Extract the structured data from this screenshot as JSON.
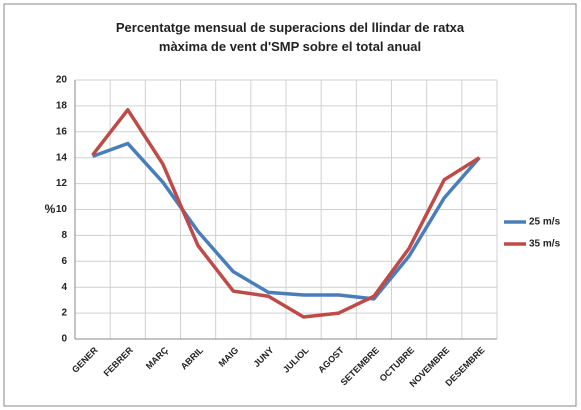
{
  "chart_data": {
    "type": "line",
    "title": "Percentatge mensual de superacions del llindar de ratxa màxima de vent d'SMP sobre el total anual",
    "y_label": "%",
    "categories": [
      "GENER",
      "FEBRER",
      "MARÇ",
      "ABRIL",
      "MAIG",
      "JUNY",
      "JULIOL",
      "AGOST",
      "SETEMBRE",
      "OCTUBRE",
      "NOVEMBRE",
      "DESEMBRE"
    ],
    "series": [
      {
        "name": "25 m/s",
        "color": "#4a7ebb",
        "values": [
          14.1,
          15.1,
          12.1,
          8.3,
          5.2,
          3.6,
          3.4,
          3.4,
          3.1,
          6.4,
          10.9,
          14.0
        ]
      },
      {
        "name": "35 m/s",
        "color": "#be4b48",
        "values": [
          14.2,
          17.7,
          13.5,
          7.2,
          3.7,
          3.3,
          1.7,
          2.0,
          3.3,
          7.0,
          12.3,
          14.0
        ]
      }
    ],
    "ylim": [
      0,
      20
    ],
    "yticks": [
      0,
      2,
      4,
      6,
      8,
      10,
      12,
      14,
      16,
      18,
      20
    ],
    "grid": true,
    "legend": "right"
  }
}
